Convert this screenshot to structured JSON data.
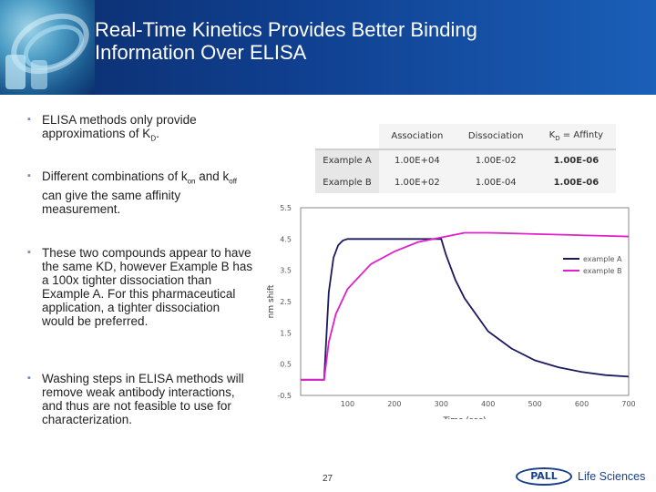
{
  "slide": {
    "title_line1": "Real-Time Kinetics Provides Better Binding",
    "title_line2": "Information Over ELISA",
    "number": "27"
  },
  "bullets": [
    "ELISA methods only provide approximations of K",
    "Different combinations of k",
    "These two compounds appear to have the same KD, however Example B has a 100x tighter dissociation than Example A.  For this pharmaceutical application, a tighter dissociation would be preferred.",
    "Washing steps in ELISA methods will remove weak antibody interactions, and thus are not feasible to use for characterization."
  ],
  "bullet_parts": {
    "b1_sub": "D",
    "b1_end": ".",
    "b2_on": "on",
    "b2_and": " and k",
    "b2_off": "off",
    "b2_rest": "can give the same affinity measurement."
  },
  "table": {
    "headers": [
      "Association",
      "Dissociation",
      "K",
      "D",
      " = Affinty"
    ],
    "rows": [
      {
        "label": "Example A",
        "assoc": "1.00E+04",
        "dissoc": "1.00E-02",
        "affinity": "1.00E-06"
      },
      {
        "label": "Example B",
        "assoc": "1.00E+02",
        "dissoc": "1.00E-04",
        "affinity": "1.00E-06"
      }
    ]
  },
  "chart_data": {
    "type": "line",
    "title": "",
    "xlabel": "Time (sec)",
    "ylabel": "nm shift",
    "xlim": [
      0,
      700
    ],
    "ylim": [
      -0.5,
      5.5
    ],
    "xticks": [
      0,
      100,
      200,
      300,
      400,
      500,
      600,
      700
    ],
    "yticks": [
      -0.5,
      0.5,
      1.5,
      2.5,
      3.5,
      4.5,
      5.5
    ],
    "grid": false,
    "legend_position": "right",
    "series": [
      {
        "name": "example A",
        "color": "#1a1a5e",
        "x": [
          0,
          50,
          60,
          70,
          80,
          90,
          100,
          150,
          200,
          250,
          300,
          310,
          330,
          350,
          400,
          450,
          500,
          550,
          600,
          650,
          700
        ],
        "y": [
          0,
          0,
          2.8,
          3.9,
          4.3,
          4.45,
          4.5,
          4.5,
          4.5,
          4.5,
          4.5,
          4.0,
          3.2,
          2.6,
          1.55,
          1.0,
          0.62,
          0.4,
          0.25,
          0.15,
          0.1
        ]
      },
      {
        "name": "example B",
        "color": "#e020c8",
        "x": [
          0,
          50,
          60,
          75,
          100,
          150,
          200,
          250,
          300,
          350,
          400,
          450,
          500,
          550,
          600,
          650,
          700
        ],
        "y": [
          0,
          0,
          1.2,
          2.1,
          2.9,
          3.7,
          4.1,
          4.4,
          4.55,
          4.7,
          4.7,
          4.68,
          4.66,
          4.64,
          4.62,
          4.6,
          4.58
        ]
      }
    ]
  },
  "logo": {
    "brand": "PALL",
    "tagline": "Life Sciences"
  }
}
